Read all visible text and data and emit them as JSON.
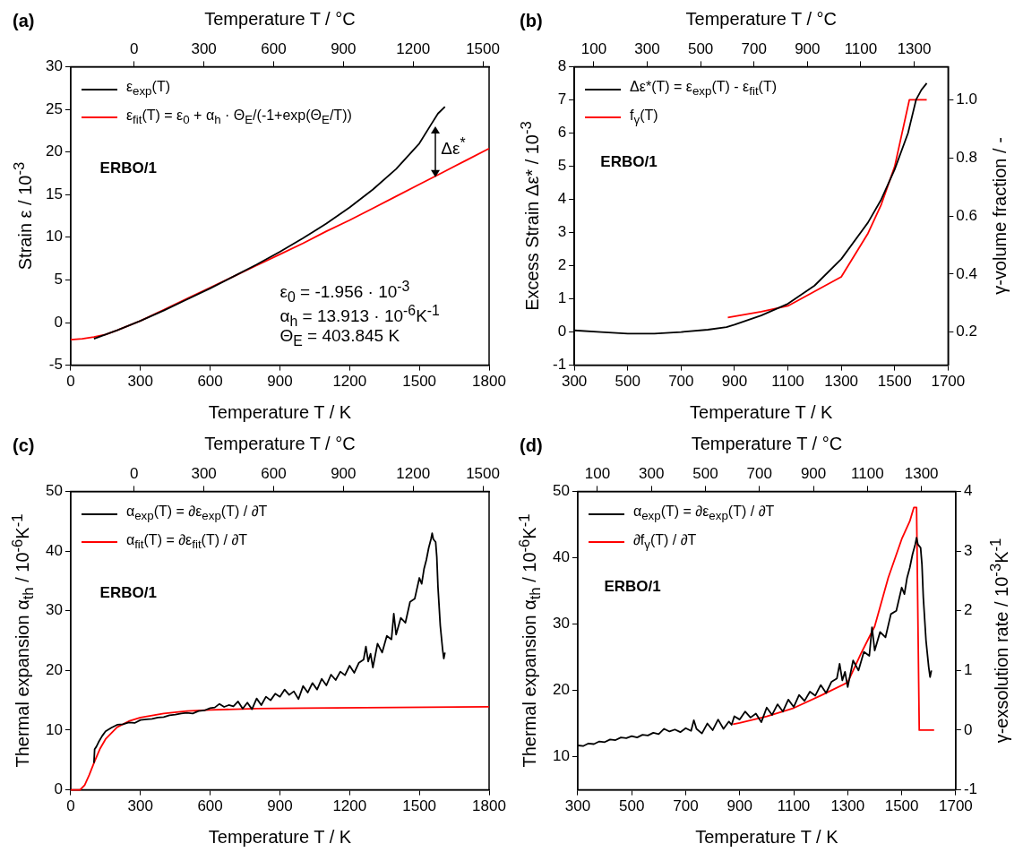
{
  "chart_data": [
    {
      "type": "line",
      "title": "(a)",
      "xlabel": "Temperature T / K",
      "x2label": "Temperature T / °C",
      "ylabel": "Strain ε / 10$^{-3}$",
      "xlim": [
        0,
        1800
      ],
      "xticks": [
        0,
        300,
        600,
        900,
        1200,
        1500,
        1800
      ],
      "x2lim": [
        -273.15,
        1526.85
      ],
      "x2ticks": [
        0,
        300,
        600,
        900,
        1200,
        1500
      ],
      "ylim": [
        -5,
        30
      ],
      "yticks": [
        -5,
        0,
        5,
        10,
        15,
        20,
        25,
        30
      ],
      "grid": false,
      "legend": "top left",
      "annotations": [
        "ERBO/1",
        "Δε$^{*}$",
        "ε$_{0}$ = -1.956 · 10$^{-3}$",
        "α$_{h}$ = 13.913 · 10$^{-6}$K$^{-1}$",
        "Θ$_{E}$ = 403.845 K"
      ],
      "series": [
        {
          "name": "ε$_{exp}$(T)",
          "color": "#000000",
          "type": "line",
          "x": [
            100,
            150,
            200,
            300,
            400,
            500,
            600,
            700,
            800,
            900,
            1000,
            1100,
            1200,
            1300,
            1400,
            1500,
            1550,
            1580,
            1610
          ],
          "values": [
            -1.9,
            -1.4,
            -0.9,
            0.2,
            1.4,
            2.7,
            4.0,
            5.4,
            6.8,
            8.3,
            9.9,
            11.6,
            13.5,
            15.6,
            18.0,
            21.0,
            23.2,
            24.5,
            25.3
          ]
        },
        {
          "name": "ε$_{fit}$(T) = ε$_{0}$ + α$_{h}$ · Θ$_{E}$/(-1+exp(Θ$_{E}$/T))",
          "color": "#ff0000",
          "type": "line",
          "x": [
            0,
            50,
            100,
            150,
            200,
            300,
            400,
            500,
            600,
            700,
            800,
            900,
            1000,
            1100,
            1200,
            1300,
            1400,
            1500,
            1600,
            1700,
            1800
          ],
          "values": [
            -2.0,
            -1.9,
            -1.7,
            -1.4,
            -0.9,
            0.2,
            1.5,
            2.8,
            4.1,
            5.4,
            6.7,
            8.0,
            9.3,
            10.7,
            12.0,
            13.4,
            14.8,
            16.2,
            17.6,
            19.0,
            20.4
          ]
        }
      ]
    },
    {
      "type": "line",
      "title": "(b)",
      "xlabel": "Temperature T / K",
      "x2label": "Temperature T / °C",
      "ylabel": "Excess Strain Δε* / 10$^{-3}$",
      "y2label": "γ-volume fraction / -",
      "xlim": [
        300,
        1700
      ],
      "xticks": [
        300,
        500,
        700,
        900,
        1100,
        1300,
        1500,
        1700
      ],
      "x2lim": [
        26.85,
        1426.85
      ],
      "x2ticks": [
        100,
        300,
        500,
        700,
        900,
        1100,
        1300
      ],
      "ylim": [
        -1,
        8
      ],
      "yticks": [
        -1,
        0,
        1,
        2,
        3,
        4,
        5,
        6,
        7,
        8
      ],
      "y2lim": [
        0.086,
        1.114
      ],
      "y2ticks": [
        0.2,
        0.4,
        0.6,
        0.8,
        {
          "value": 1,
          "label": "1.0"
        }
      ],
      "grid": false,
      "legend": "top left",
      "annotations": [
        "ERBO/1"
      ],
      "series": [
        {
          "name": "Δε*(T) = ε$_{exp}$(T) - ε$_{fit}$(T)",
          "color": "#000000",
          "type": "line",
          "x": [
            300,
            400,
            500,
            550,
            600,
            700,
            800,
            870,
            900,
            1000,
            1100,
            1200,
            1300,
            1400,
            1450,
            1500,
            1550,
            1580,
            1600,
            1620
          ],
          "values": [
            0.05,
            0,
            -0.05,
            -0.05,
            -0.05,
            0,
            0.07,
            0.15,
            0.22,
            0.5,
            0.85,
            1.4,
            2.2,
            3.3,
            4.0,
            4.9,
            6.0,
            7.0,
            7.3,
            7.5
          ]
        },
        {
          "name": "f$_{γ}$(T)",
          "color": "#ff0000",
          "type": "line",
          "axis": "y2",
          "x": [
            875,
            1000,
            1100,
            1200,
            1300,
            1400,
            1450,
            1500,
            1555,
            1620
          ],
          "values": [
            0.25,
            0.27,
            0.29,
            0.34,
            0.39,
            0.54,
            0.64,
            0.77,
            1.0,
            1.0
          ]
        }
      ]
    },
    {
      "type": "line",
      "title": "(c)",
      "xlabel": "Temperature T / K",
      "x2label": "Temperature T / °C",
      "ylabel": "Thermal expansion  α$_{th}$ / 10$^{-6}$K$^{-1}$",
      "xlim": [
        0,
        1800
      ],
      "xticks": [
        0,
        300,
        600,
        900,
        1200,
        1500,
        1800
      ],
      "x2lim": [
        -273.15,
        1526.85
      ],
      "x2ticks": [
        0,
        300,
        600,
        900,
        1200,
        1500
      ],
      "ylim": [
        0,
        50
      ],
      "yticks": [
        0,
        10,
        20,
        30,
        40,
        50
      ],
      "grid": false,
      "legend": "top left",
      "annotations": [
        "ERBO/1"
      ],
      "series": [
        {
          "name": "α$_{exp}$(T) = ∂ε$_{exp}$(T) / ∂T",
          "color": "#000000",
          "type": "line",
          "x": [
            100,
            103,
            110,
            120,
            135,
            150,
            175,
            200,
            225,
            250,
            275,
            300,
            325,
            350,
            375,
            400,
            425,
            450,
            475,
            500,
            525,
            550,
            575,
            600,
            620,
            640,
            660,
            680,
            700,
            720,
            740,
            760,
            780,
            800,
            820,
            840,
            860,
            880,
            900,
            920,
            940,
            960,
            980,
            1000,
            1020,
            1040,
            1060,
            1080,
            1100,
            1120,
            1140,
            1160,
            1180,
            1200,
            1220,
            1240,
            1260,
            1270,
            1280,
            1290,
            1300,
            1320,
            1340,
            1360,
            1380,
            1390,
            1400,
            1420,
            1440,
            1460,
            1480,
            1500,
            1510,
            1520,
            1530,
            1540,
            1550,
            1555,
            1560,
            1570,
            1575,
            1580,
            1590,
            1600,
            1605,
            1610
          ],
          "values": [
            4.5,
            6.8,
            7.2,
            8.0,
            9.0,
            9.8,
            10.4,
            10.9,
            11.0,
            11.3,
            11.2,
            11.7,
            11.8,
            11.9,
            12.1,
            12.2,
            12.5,
            12.6,
            12.8,
            12.9,
            12.8,
            13.2,
            13.3,
            13.7,
            13.8,
            14.4,
            13.9,
            14.2,
            14.0,
            14.8,
            13.6,
            14.6,
            13.5,
            15.3,
            14.2,
            15.6,
            15.0,
            16.1,
            15.6,
            16.8,
            15.9,
            16.5,
            15.2,
            17.4,
            16.3,
            17.9,
            16.8,
            18.6,
            17.5,
            19.3,
            18.4,
            19.8,
            19.2,
            20.8,
            19.6,
            21.3,
            21.8,
            24.0,
            21.5,
            22.8,
            20.5,
            24.5,
            23.0,
            25.8,
            25.2,
            29.5,
            26.0,
            28.8,
            28.0,
            31.5,
            32.0,
            35.5,
            34.5,
            37.0,
            38.5,
            40.5,
            42.0,
            43.0,
            42.0,
            41.5,
            39.0,
            34.0,
            27.5,
            23.5,
            22.0,
            23.0
          ]
        },
        {
          "name": "α$_{fit}$(T)  = ∂ε$_{fit}$(T) / ∂T",
          "color": "#ff0000",
          "type": "line",
          "x": [
            0,
            40,
            60,
            80,
            100,
            125,
            150,
            200,
            250,
            300,
            400,
            500,
            600,
            800,
            1000,
            1400,
            1800
          ],
          "values": [
            0,
            0,
            0.8,
            2.5,
            4.5,
            6.8,
            8.5,
            10.5,
            11.5,
            12.1,
            12.8,
            13.2,
            13.4,
            13.6,
            13.7,
            13.8,
            13.9
          ]
        }
      ]
    },
    {
      "type": "line",
      "title": "(d)",
      "xlabel": "Temperature T / K",
      "x2label": "Temperature T / °C",
      "ylabel": "Thermal expansion  α$_{th}$ / 10$^{-6}$K$^{-1}$",
      "y2label": "γ-exsolution rate / 10$^{-3}$K$^{-1}$",
      "xlim": [
        300,
        1700
      ],
      "xticks": [
        300,
        500,
        700,
        900,
        1100,
        1300,
        1500,
        1700
      ],
      "x2lim": [
        26.85,
        1426.85
      ],
      "x2ticks": [
        100,
        300,
        500,
        700,
        900,
        1100,
        1300
      ],
      "ylim": [
        5,
        50
      ],
      "yticks": [
        10,
        20,
        30,
        40,
        50
      ],
      "y2lim": [
        -1,
        4
      ],
      "y2ticks": [
        -1,
        0,
        1,
        2,
        3,
        4
      ],
      "grid": false,
      "legend": "top left",
      "annotations": [
        "ERBO/1"
      ],
      "series": [
        {
          "name": "α$_{exp}$(T) = ∂ε$_{exp}$(T) / ∂T",
          "color": "#000000",
          "type": "line",
          "x": [
            300,
            320,
            340,
            360,
            380,
            400,
            420,
            440,
            460,
            480,
            500,
            520,
            540,
            560,
            580,
            600,
            620,
            640,
            660,
            680,
            700,
            720,
            730,
            740,
            760,
            780,
            800,
            820,
            840,
            860,
            870,
            880,
            900,
            920,
            940,
            960,
            980,
            1000,
            1020,
            1040,
            1060,
            1080,
            1100,
            1120,
            1140,
            1160,
            1180,
            1200,
            1220,
            1240,
            1260,
            1270,
            1280,
            1290,
            1300,
            1320,
            1340,
            1360,
            1380,
            1390,
            1400,
            1420,
            1440,
            1460,
            1480,
            1500,
            1510,
            1520,
            1530,
            1540,
            1550,
            1555,
            1560,
            1570,
            1575,
            1580,
            1590,
            1600,
            1605,
            1610
          ],
          "values": [
            11.7,
            11.6,
            12.0,
            11.9,
            12.3,
            12.2,
            12.6,
            12.5,
            12.9,
            12.8,
            13.1,
            12.9,
            13.3,
            13.2,
            13.6,
            13.4,
            14.2,
            13.8,
            14.1,
            13.7,
            14.3,
            13.9,
            15.5,
            14.2,
            13.5,
            15.0,
            14.0,
            15.6,
            14.2,
            15.3,
            14.8,
            16.1,
            15.6,
            16.8,
            15.9,
            16.5,
            15.2,
            17.4,
            16.3,
            17.9,
            16.8,
            18.6,
            17.5,
            19.3,
            18.4,
            19.8,
            19.2,
            20.8,
            19.6,
            21.3,
            21.8,
            24.0,
            21.5,
            22.8,
            20.5,
            24.5,
            23.0,
            25.8,
            25.2,
            29.5,
            26.0,
            28.8,
            28.0,
            31.5,
            32.0,
            35.5,
            34.5,
            37.0,
            38.5,
            40.5,
            42.0,
            43.0,
            42.0,
            41.5,
            39.0,
            34.0,
            27.5,
            23.5,
            22.0,
            23.0
          ]
        },
        {
          "name": "∂f$_{γ}$(T) / ∂T",
          "color": "#ff0000",
          "type": "line",
          "axis": "y2",
          "x": [
            875,
            900,
            1000,
            1100,
            1200,
            1300,
            1350,
            1400,
            1450,
            1500,
            1530,
            1545,
            1555,
            1565,
            1620
          ],
          "values": [
            0.1,
            0.12,
            0.23,
            0.37,
            0.58,
            0.8,
            1.29,
            1.74,
            2.55,
            3.2,
            3.5,
            3.73,
            3.73,
            0,
            0
          ]
        }
      ]
    }
  ]
}
